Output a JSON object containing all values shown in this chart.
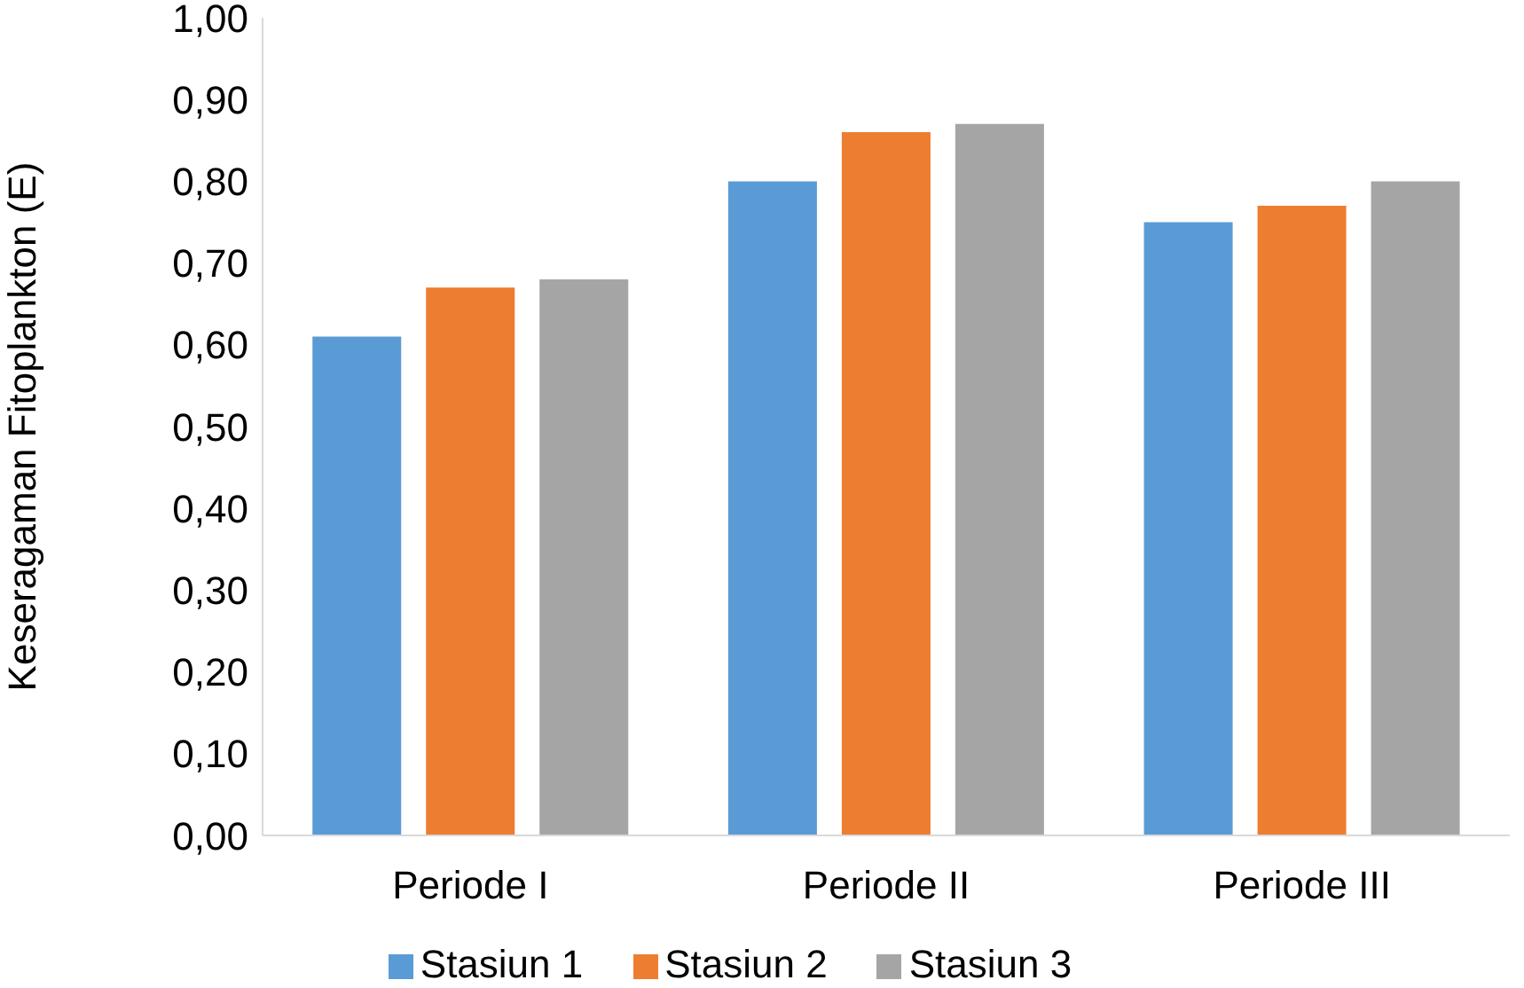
{
  "chart_data": {
    "type": "bar",
    "ylabel": "Keseragaman Fitoplankton (E)",
    "categories": [
      "Periode I",
      "Periode II",
      "Periode III"
    ],
    "series": [
      {
        "name": "Stasiun 1",
        "color": "#5b9bd5",
        "values": [
          0.61,
          0.8,
          0.75
        ]
      },
      {
        "name": "Stasiun 2",
        "color": "#ed7d31",
        "values": [
          0.67,
          0.86,
          0.77
        ]
      },
      {
        "name": "Stasiun 3",
        "color": "#a5a5a5",
        "values": [
          0.68,
          0.87,
          0.8
        ]
      }
    ],
    "ylim": [
      0,
      1
    ],
    "yticks": [
      {
        "value": 0,
        "label": "0,00"
      },
      {
        "value": 0.1,
        "label": "0,10"
      },
      {
        "value": 0.2,
        "label": "0,20"
      },
      {
        "value": 0.3,
        "label": "0,30"
      },
      {
        "value": 0.4,
        "label": "0,40"
      },
      {
        "value": 0.5,
        "label": "0,50"
      },
      {
        "value": 0.6,
        "label": "0,60"
      },
      {
        "value": 0.7,
        "label": "0,70"
      },
      {
        "value": 0.8,
        "label": "0,80"
      },
      {
        "value": 0.9,
        "label": "0,90"
      },
      {
        "value": 1,
        "label": "1,00"
      }
    ],
    "grid": false,
    "legend": "bottom"
  }
}
